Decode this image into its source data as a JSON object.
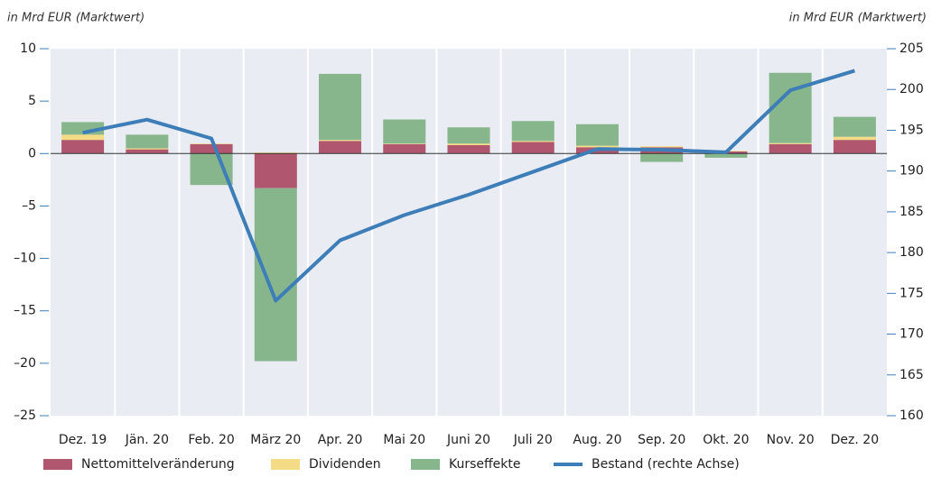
{
  "chart_data": {
    "type": "bar",
    "stacked": true,
    "ylabel": "in Mrd EUR (Marktwert)",
    "y2label": "in Mrd EUR (Marktwert)",
    "categories": [
      "Dez. 19",
      "Jän. 20",
      "Feb. 20",
      "März 20",
      "Apr. 20",
      "Mai 20",
      "Juni 20",
      "Juli 20",
      "Aug. 20",
      "Sep. 20",
      "Okt. 20",
      "Nov. 20",
      "Dez. 20"
    ],
    "series": [
      {
        "name": "Nettomittelveränderung",
        "color": "#b0566e",
        "values": [
          1.3,
          0.4,
          0.9,
          -3.3,
          1.2,
          0.9,
          0.8,
          1.1,
          0.6,
          0.6,
          0.2,
          0.9,
          1.3
        ]
      },
      {
        "name": "Dividenden",
        "color": "#f3dc85",
        "values": [
          0.5,
          0.1,
          0.05,
          0.1,
          0.1,
          0.05,
          0.15,
          0.1,
          0.15,
          0.1,
          0.05,
          0.1,
          0.3
        ]
      },
      {
        "name": "Kurseffekte",
        "color": "#87b68c",
        "values": [
          1.2,
          1.3,
          -3.0,
          -16.5,
          6.3,
          2.3,
          1.55,
          1.9,
          2.05,
          -0.8,
          -0.4,
          6.7,
          1.9
        ]
      },
      {
        "name": "Bestand (rechte Achse)",
        "color": "#3d7db8",
        "axis": "y2",
        "values": [
          194.7,
          196.3,
          194.0,
          174.1,
          181.5,
          184.6,
          187.1,
          189.9,
          192.7,
          192.6,
          192.3,
          199.9,
          202.3
        ]
      }
    ],
    "ylim": [
      -25,
      10
    ],
    "yticks": [
      {
        "value": -25,
        "label": "–25"
      },
      {
        "value": -20,
        "label": "–20"
      },
      {
        "value": -15,
        "label": "–15"
      },
      {
        "value": -10,
        "label": "–10"
      },
      {
        "value": -5,
        "label": "–5"
      },
      0,
      5,
      10
    ],
    "y2lim": [
      160,
      205
    ],
    "y2ticks": [
      160,
      165,
      170,
      175,
      180,
      185,
      190,
      195,
      200,
      205
    ]
  }
}
